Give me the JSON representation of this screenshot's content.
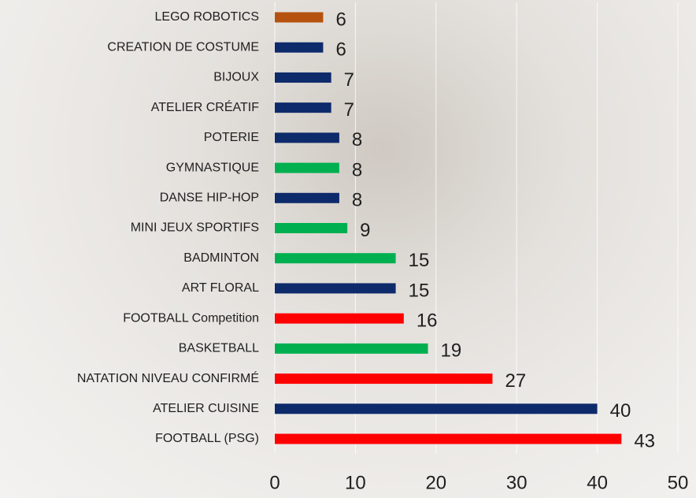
{
  "chart_data": {
    "type": "barh",
    "categories": [
      "LEGO ROBOTICS",
      "CREATION DE COSTUME",
      "BIJOUX",
      "ATELIER CRÉATIF",
      "POTERIE",
      "GYMNASTIQUE",
      "DANSE HIP-HOP",
      "MINI JEUX SPORTIFS",
      "BADMINTON",
      "ART FLORAL",
      "FOOTBALL Competition",
      "BASKETBALL",
      "NATATION NIVEAU CONFIRMÉ",
      "ATELIER CUISINE",
      "FOOTBALL (PSG)"
    ],
    "values": [
      6,
      6,
      7,
      7,
      8,
      8,
      8,
      9,
      15,
      15,
      16,
      19,
      27,
      40,
      43
    ],
    "colors": [
      "#b5520f",
      "#0d2a6b",
      "#0d2a6b",
      "#0d2a6b",
      "#0d2a6b",
      "#00b050",
      "#0d2a6b",
      "#00b050",
      "#00b050",
      "#0d2a6b",
      "#ff0000",
      "#00b050",
      "#ff0000",
      "#0d2a6b",
      "#ff0000"
    ],
    "xlim": [
      0,
      50
    ],
    "xticks": [
      0,
      10,
      20,
      30,
      40,
      50
    ],
    "grid": true
  }
}
